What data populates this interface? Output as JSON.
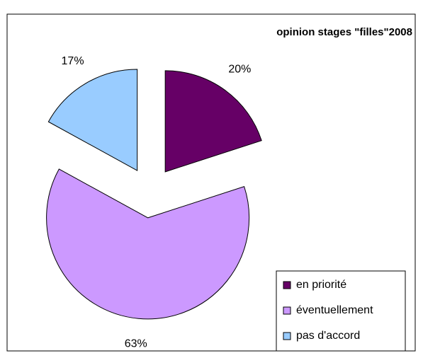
{
  "chart_data": {
    "type": "pie",
    "title": "opinion stages \"filles\"2008",
    "categories": [
      "en priorité",
      "éventuellement",
      "pas d'accord"
    ],
    "values": [
      20,
      63,
      17
    ],
    "value_labels": [
      "20%",
      "63%",
      "17%"
    ],
    "colors": [
      "#660066",
      "#cc99ff",
      "#99ccff"
    ],
    "exploded": true,
    "legend": "bottom-right"
  }
}
